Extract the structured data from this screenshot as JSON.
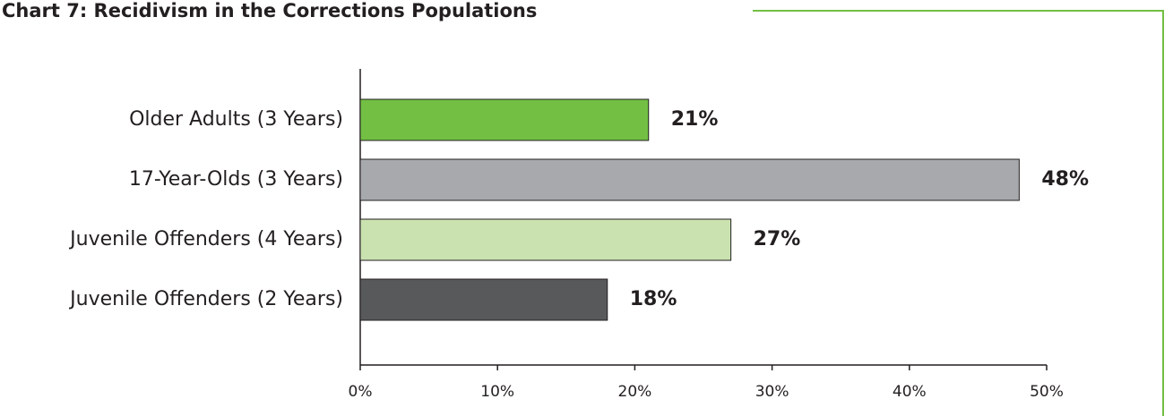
{
  "chart_data": {
    "type": "bar",
    "orientation": "horizontal",
    "title": "Chart 7: Recidivism in the Corrections Populations",
    "categories": [
      "Older Adults (3 Years)",
      "17-Year-Olds (3 Years)",
      "Juvenile Offenders (4 Years)",
      "Juvenile Offenders (2 Years)"
    ],
    "values": [
      21,
      48,
      27,
      18
    ],
    "value_labels": [
      "21%",
      "48%",
      "27%",
      "18%"
    ],
    "colors": [
      "#72bf44",
      "#a7a9ac",
      "#c9e2b0",
      "#58595b"
    ],
    "xlim": [
      0,
      50
    ],
    "xticks": [
      {
        "value": 0,
        "label": "0%"
      },
      {
        "value": 10,
        "label": "10%"
      },
      {
        "value": 20,
        "label": "20%"
      },
      {
        "value": 30,
        "label": "30%"
      },
      {
        "value": 40,
        "label": "40%"
      },
      {
        "value": 50,
        "label": "50%"
      }
    ],
    "grid": false
  }
}
